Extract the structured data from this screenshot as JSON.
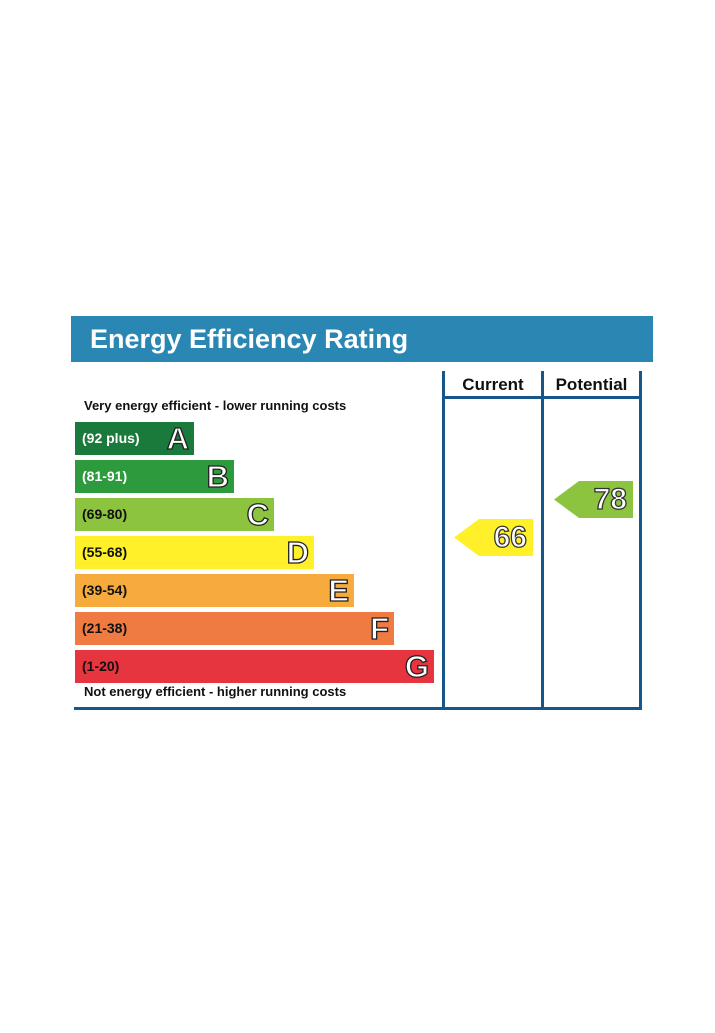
{
  "title": "Energy Efficiency Rating",
  "columns": {
    "current": "Current",
    "potential": "Potential"
  },
  "captions": {
    "top": "Very energy efficient - lower running costs",
    "bottom": "Not energy efficient - higher running costs"
  },
  "bands": [
    {
      "range": "(92 plus)",
      "letter": "A",
      "color": "#1a7a3b",
      "text_color": "#ffffff"
    },
    {
      "range": "(81-91)",
      "letter": "B",
      "color": "#2d9a3e",
      "text_color": "#ffffff"
    },
    {
      "range": "(69-80)",
      "letter": "C",
      "color": "#8cc43f",
      "text_color": "#111111"
    },
    {
      "range": "(55-68)",
      "letter": "D",
      "color": "#fff02a",
      "text_color": "#111111"
    },
    {
      "range": "(39-54)",
      "letter": "E",
      "color": "#f7ab3c",
      "text_color": "#111111"
    },
    {
      "range": "(21-38)",
      "letter": "F",
      "color": "#ef7a42",
      "text_color": "#111111"
    },
    {
      "range": "(1-20)",
      "letter": "G",
      "color": "#e6353f",
      "text_color": "#111111"
    }
  ],
  "ratings": {
    "current": {
      "value": "66",
      "band": "D",
      "color": "#fff02a"
    },
    "potential": {
      "value": "78",
      "band": "C",
      "color": "#8cc43f"
    }
  }
}
